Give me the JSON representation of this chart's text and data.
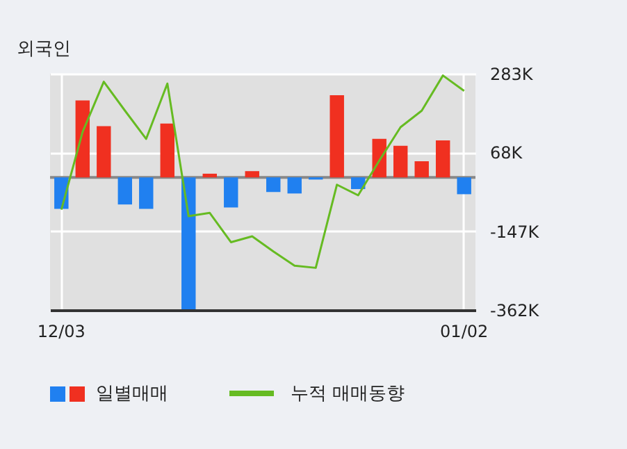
{
  "chart_data": {
    "type": "bar",
    "title": "외국인",
    "categories": [
      "12/03",
      null,
      null,
      null,
      null,
      null,
      null,
      null,
      null,
      null,
      null,
      null,
      null,
      null,
      null,
      null,
      null,
      null,
      null,
      "01/02"
    ],
    "series": [
      {
        "name": "일별매매",
        "colors": [
          "#2080f0",
          "#f03020",
          "#f03020",
          "#2080f0",
          "#2080f0",
          "#f03020",
          "#2080f0",
          "#f03020",
          "#2080f0",
          "#f03020",
          "#2080f0",
          "#2080f0",
          "#2080f0",
          "#f03020",
          "#2080f0",
          "#f03020",
          "#f03020",
          "#f03020",
          "#f03020",
          "#2080f0"
        ],
        "values": [
          -86000,
          210000,
          140000,
          -74000,
          -86000,
          147000,
          -360000,
          10000,
          -82000,
          17000,
          -40000,
          -44000,
          -6000,
          224000,
          -32000,
          105000,
          86000,
          44000,
          101000,
          -46000
        ]
      },
      {
        "name": "누적 매매동향",
        "type": "line",
        "color": "#66bb22",
        "values": [
          -88000,
          124000,
          261000,
          182000,
          105000,
          256000,
          -106000,
          -97000,
          -177000,
          -161000,
          -202000,
          -241000,
          -247000,
          -20000,
          -49000,
          46000,
          137000,
          182000,
          278000,
          236000
        ]
      }
    ],
    "ylim": [
      -362000,
      283000
    ],
    "yticks": [
      {
        "value": 283000,
        "label": "283K"
      },
      {
        "value": 68000,
        "label": "68K"
      },
      {
        "value": -147000,
        "label": "-147K"
      },
      {
        "value": -362000,
        "label": "-362K"
      }
    ],
    "ref_lines": [
      {
        "axis": "y",
        "value": 0,
        "color": "#888888"
      }
    ],
    "grid": true,
    "legend": "bottom"
  }
}
